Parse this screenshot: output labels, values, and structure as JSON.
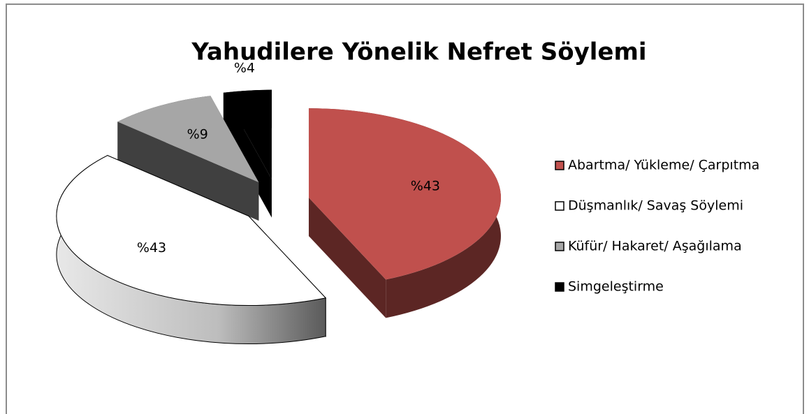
{
  "chart_data": {
    "type": "pie",
    "title": "Yahudilere Yönelik Nefret Söylemi",
    "categories": [
      "Abartma/ Yükleme/ Çarpıtma",
      "Düşmanlık/ Savaş Söylemi",
      "Küfür/ Hakaret/ Aşağılama",
      "Simgeleştirme"
    ],
    "values": [
      43,
      43,
      9,
      4
    ],
    "value_labels": [
      "%43",
      "%43",
      "%9",
      "%4"
    ],
    "colors": [
      "#c0504d",
      "#ffffff",
      "#a6a6a6",
      "#000000"
    ],
    "legend": "right"
  }
}
